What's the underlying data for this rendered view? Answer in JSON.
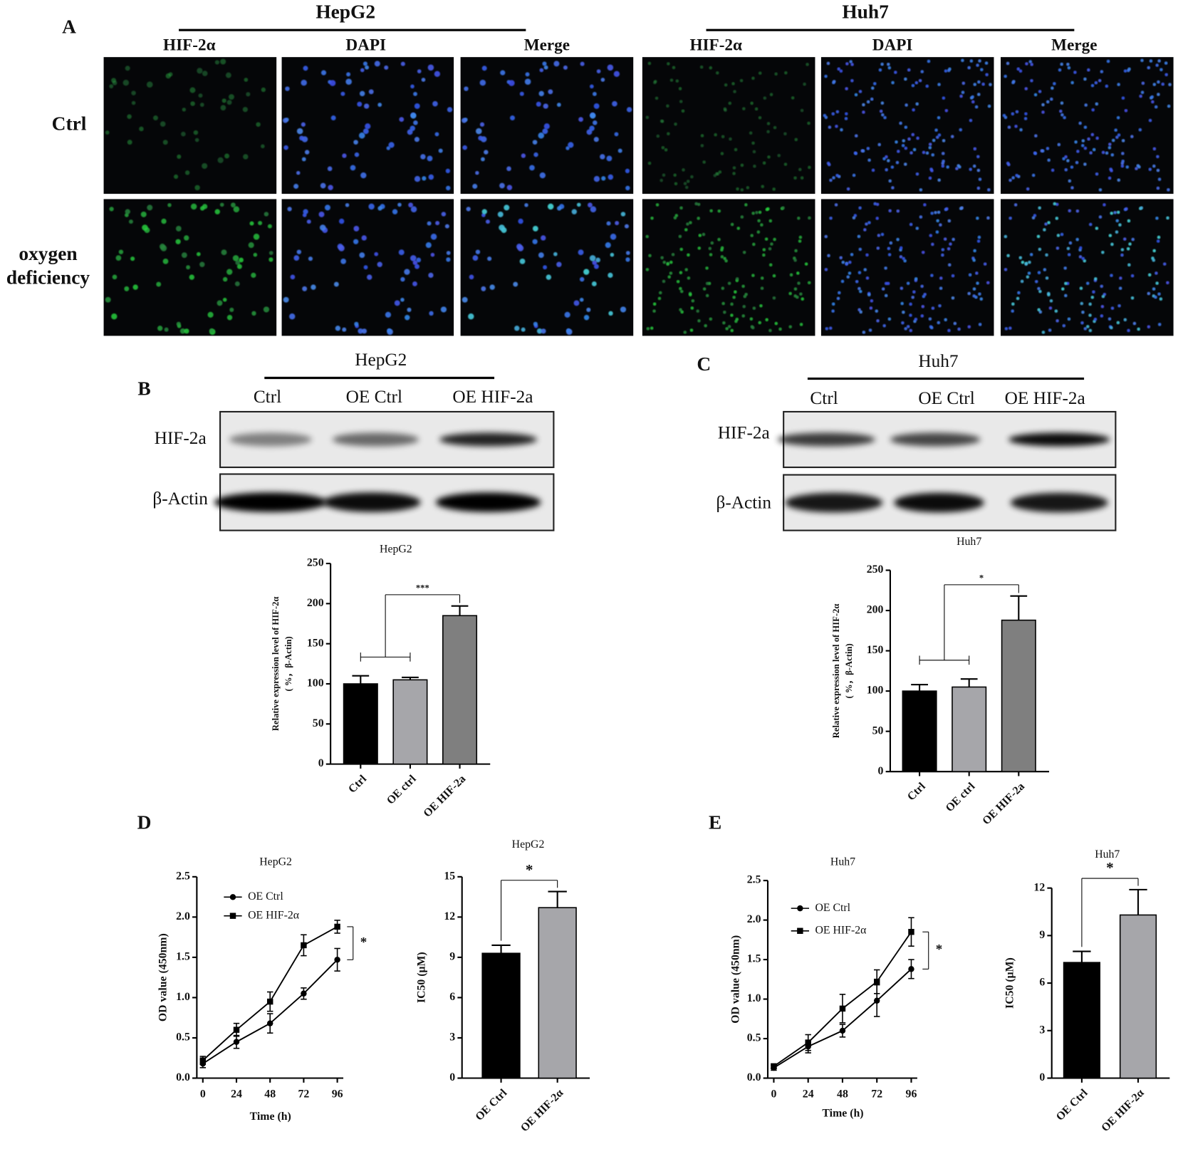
{
  "figure": {
    "panel_a": {
      "letter": "A",
      "groups": [
        "HepG2",
        "Huh7"
      ],
      "columns": [
        "HIF-2α",
        "DAPI",
        "Merge",
        "HIF-2α",
        "DAPI",
        "Merge"
      ],
      "rows": [
        [
          "Ctrl"
        ],
        [
          "oxygen",
          "deficiency"
        ]
      ]
    },
    "panel_b": {
      "letter": "B",
      "cell_line": "HepG2",
      "lanes": [
        "Ctrl",
        "OE Ctrl",
        "OE HIF-2a"
      ],
      "proteins": [
        "HIF-2a",
        "β-Actin"
      ]
    },
    "panel_c": {
      "letter": "C",
      "cell_line": "Huh7",
      "lanes": [
        "Ctrl",
        "OE Ctrl",
        "OE HIF-2a"
      ],
      "proteins": [
        "HIF-2a",
        "β-Actin"
      ]
    },
    "panel_d": {
      "letter": "D"
    },
    "panel_e": {
      "letter": "E"
    }
  },
  "chart_data": [
    {
      "type": "bar",
      "title": "HepG2",
      "ylabel": [
        "Relative expression level of HIF-2α",
        "( %，β-Actin)"
      ],
      "categories": [
        "Ctrl",
        "OE ctrl",
        "OE HIF-2a"
      ],
      "values": [
        100,
        105,
        185
      ],
      "errors": [
        10,
        3,
        12
      ],
      "colors": [
        "#000000",
        "#a6a6aa",
        "#7f7f7f"
      ],
      "ylim": [
        0,
        250
      ],
      "yticks": [
        0,
        50,
        100,
        150,
        200,
        250
      ],
      "significance": "***"
    },
    {
      "type": "bar",
      "title": "Huh7",
      "ylabel": [
        "Relative expression level of HIF-2α",
        "( %，β-Actin)"
      ],
      "categories": [
        "Ctrl",
        "OE ctrl",
        "OE HIF-2a"
      ],
      "values": [
        100,
        105,
        188
      ],
      "errors": [
        8,
        10,
        30
      ],
      "colors": [
        "#000000",
        "#a6a6aa",
        "#7f7f7f"
      ],
      "ylim": [
        0,
        250
      ],
      "yticks": [
        0,
        50,
        100,
        150,
        200,
        250
      ],
      "significance": "*"
    },
    {
      "type": "line",
      "title": "HepG2",
      "xlabel": "Time (h)",
      "ylabel": [
        "OD value (450nm)"
      ],
      "x": [
        0,
        24,
        48,
        72,
        96
      ],
      "xlim": [
        0,
        96
      ],
      "xticks": [
        0,
        24,
        48,
        72,
        96
      ],
      "ylim": [
        0,
        2.5
      ],
      "yticks": [
        {
          "value": 0,
          "label": "0.0"
        },
        0.5,
        {
          "value": 1,
          "label": "1.0"
        },
        1.5,
        {
          "value": 2,
          "label": "2.0"
        },
        2.5
      ],
      "series": [
        {
          "name": "OE Ctrl",
          "color": "#000000",
          "marker": "circle",
          "values": [
            0.18,
            0.45,
            0.68,
            1.05,
            1.47
          ],
          "errors": [
            0.05,
            0.08,
            0.12,
            0.07,
            0.14
          ]
        },
        {
          "name": "OE HIF-2α",
          "color": "#000000",
          "marker": "square",
          "values": [
            0.22,
            0.6,
            0.95,
            1.65,
            1.88
          ],
          "errors": [
            0.05,
            0.08,
            0.12,
            0.13,
            0.08
          ]
        }
      ],
      "significance": "*"
    },
    {
      "type": "bar",
      "title": "HepG2",
      "ylabel": [
        "IC50 (μM)"
      ],
      "categories": [
        "OE Ctrl",
        "OE HIF-2α"
      ],
      "values": [
        9.3,
        12.7
      ],
      "errors": [
        0.6,
        1.2
      ],
      "colors": [
        "#000000",
        "#a6a6aa"
      ],
      "ylim": [
        0,
        15
      ],
      "yticks": [
        0,
        3,
        6,
        9,
        12,
        15
      ],
      "significance": "*"
    },
    {
      "type": "line",
      "title": "Huh7",
      "xlabel": "Time (h)",
      "ylabel": [
        "OD value (450nm)"
      ],
      "x": [
        0,
        24,
        48,
        72,
        96
      ],
      "xlim": [
        0,
        96
      ],
      "xticks": [
        0,
        24,
        48,
        72,
        96
      ],
      "ylim": [
        0,
        2.5
      ],
      "yticks": [
        {
          "value": 0,
          "label": "0.0"
        },
        0.5,
        {
          "value": 1,
          "label": "1.0"
        },
        1.5,
        {
          "value": 2,
          "label": "2.0"
        },
        2.5
      ],
      "series": [
        {
          "name": "OE Ctrl",
          "color": "#000000",
          "marker": "circle",
          "values": [
            0.13,
            0.4,
            0.6,
            0.98,
            1.38
          ],
          "errors": [
            0.03,
            0.08,
            0.08,
            0.2,
            0.12
          ]
        },
        {
          "name": "OE HIF-2α",
          "color": "#000000",
          "marker": "square",
          "values": [
            0.15,
            0.45,
            0.88,
            1.22,
            1.85
          ],
          "errors": [
            0.03,
            0.1,
            0.18,
            0.15,
            0.18
          ]
        }
      ],
      "significance": "*"
    },
    {
      "type": "bar",
      "title": "Huh7",
      "ylabel": [
        "IC50 (μM)"
      ],
      "categories": [
        "OE Ctrl",
        "OE HIF-2α"
      ],
      "values": [
        7.3,
        10.3
      ],
      "errors": [
        0.7,
        1.6
      ],
      "colors": [
        "#000000",
        "#a6a6aa"
      ],
      "ylim": [
        0,
        12
      ],
      "yticks": [
        0,
        3,
        6,
        9,
        12
      ],
      "significance": "*"
    }
  ]
}
